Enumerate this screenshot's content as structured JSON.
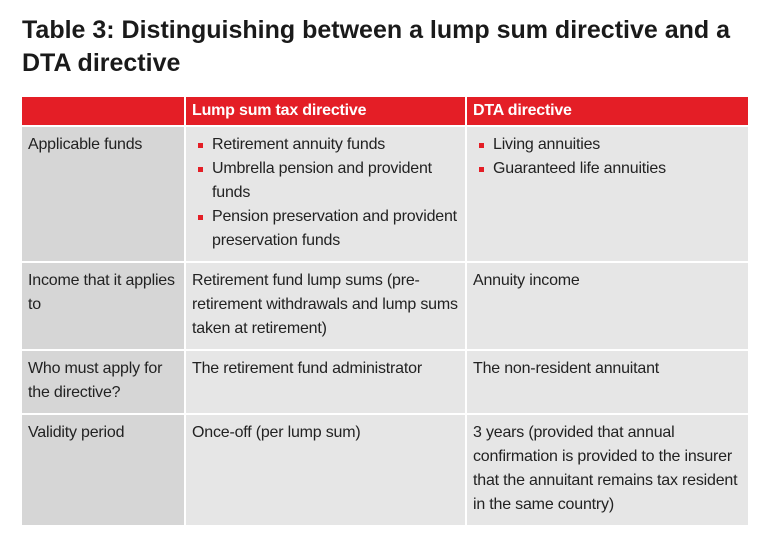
{
  "title": "Table 3: Distinguishing between a lump sum directive and a DTA directive",
  "table": {
    "header": [
      "Lump sum tax directive",
      "DTA directive"
    ],
    "rows": [
      {
        "label": "Applicable funds",
        "cells": [
          [
            "Retirement annuity funds",
            "Umbrella pension and provident funds",
            "Pension preservation and provident preservation funds"
          ],
          [
            "Living annuities",
            "Guaranteed life annuities"
          ]
        ]
      },
      {
        "label": "Income that it applies to",
        "cells": [
          "Retirement fund lump sums (pre-retirement withdrawals and lump sums taken at retirement)",
          "Annuity income"
        ]
      },
      {
        "label": "Who must apply for the directive?",
        "cells": [
          "The retirement fund administrator",
          "The non-resident annuitant"
        ]
      },
      {
        "label": "Validity period",
        "cells": [
          "Once-off (per lump sum)",
          "3 years (provided that annual confirmation is provided to the insurer that the annuitant remains tax resident in the same country)"
        ]
      }
    ]
  }
}
